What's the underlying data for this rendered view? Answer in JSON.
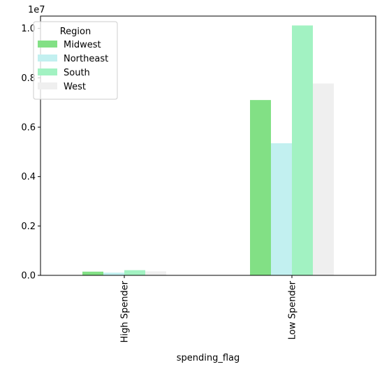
{
  "chart_data": {
    "type": "bar",
    "title": "",
    "xlabel": "spending_flag",
    "ylabel": "",
    "y_offset_label": "1e7",
    "categories": [
      "High Spender",
      "Low Spender"
    ],
    "ylim": [
      0,
      10500000
    ],
    "y_ticks": [
      0,
      2000000,
      4000000,
      6000000,
      8000000,
      10000000
    ],
    "y_tick_labels": [
      "0.0",
      "0.2",
      "0.4",
      "0.6",
      "0.8",
      "1.0"
    ],
    "grid": false,
    "legend": {
      "title": "Region",
      "placement": "top-left"
    },
    "series": [
      {
        "name": "Midwest",
        "color": "#82e085",
        "values": [
          150000,
          7100000
        ]
      },
      {
        "name": "Northeast",
        "color": "#c2f0f0",
        "values": [
          110000,
          5350000
        ]
      },
      {
        "name": "South",
        "color": "#a2f2c2",
        "values": [
          210000,
          10120000
        ]
      },
      {
        "name": "West",
        "color": "#efefef",
        "values": [
          160000,
          7770000
        ]
      }
    ]
  }
}
